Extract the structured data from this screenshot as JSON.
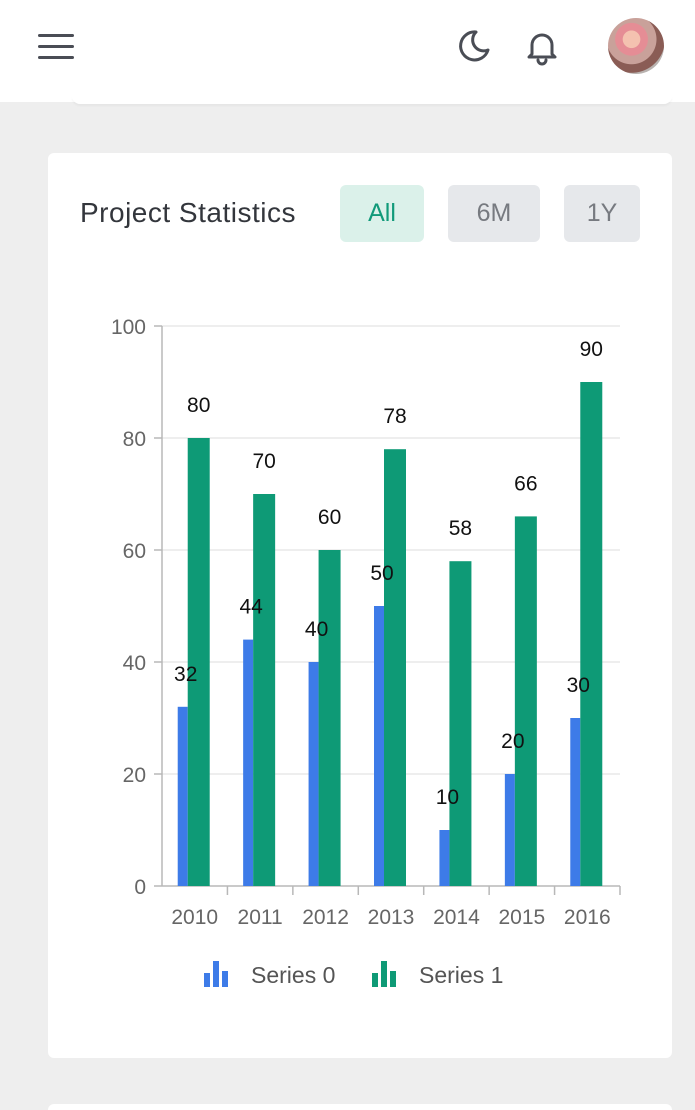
{
  "header": {
    "menu_icon": "hamburger-menu-icon",
    "theme_icon": "moon-icon",
    "notification_icon": "bell-icon"
  },
  "card": {
    "title": "Project Statistics",
    "filters": [
      {
        "label": "All",
        "active": true
      },
      {
        "label": "6M",
        "active": false
      },
      {
        "label": "1Y",
        "active": false
      }
    ]
  },
  "chart_data": {
    "type": "bar",
    "categories": [
      "2010",
      "2011",
      "2012",
      "2013",
      "2014",
      "2015",
      "2016"
    ],
    "series": [
      {
        "name": "Series 0",
        "values": [
          32,
          44,
          40,
          50,
          10,
          20,
          30
        ],
        "color": "#3d7be8"
      },
      {
        "name": "Series 1",
        "values": [
          80,
          70,
          60,
          78,
          58,
          66,
          90
        ],
        "color": "#0e9a76"
      }
    ],
    "ylim": [
      0,
      100
    ],
    "yticks": [
      0,
      20,
      40,
      60,
      80,
      100
    ],
    "grid": true,
    "legend": "bottom",
    "data_labels": true
  }
}
